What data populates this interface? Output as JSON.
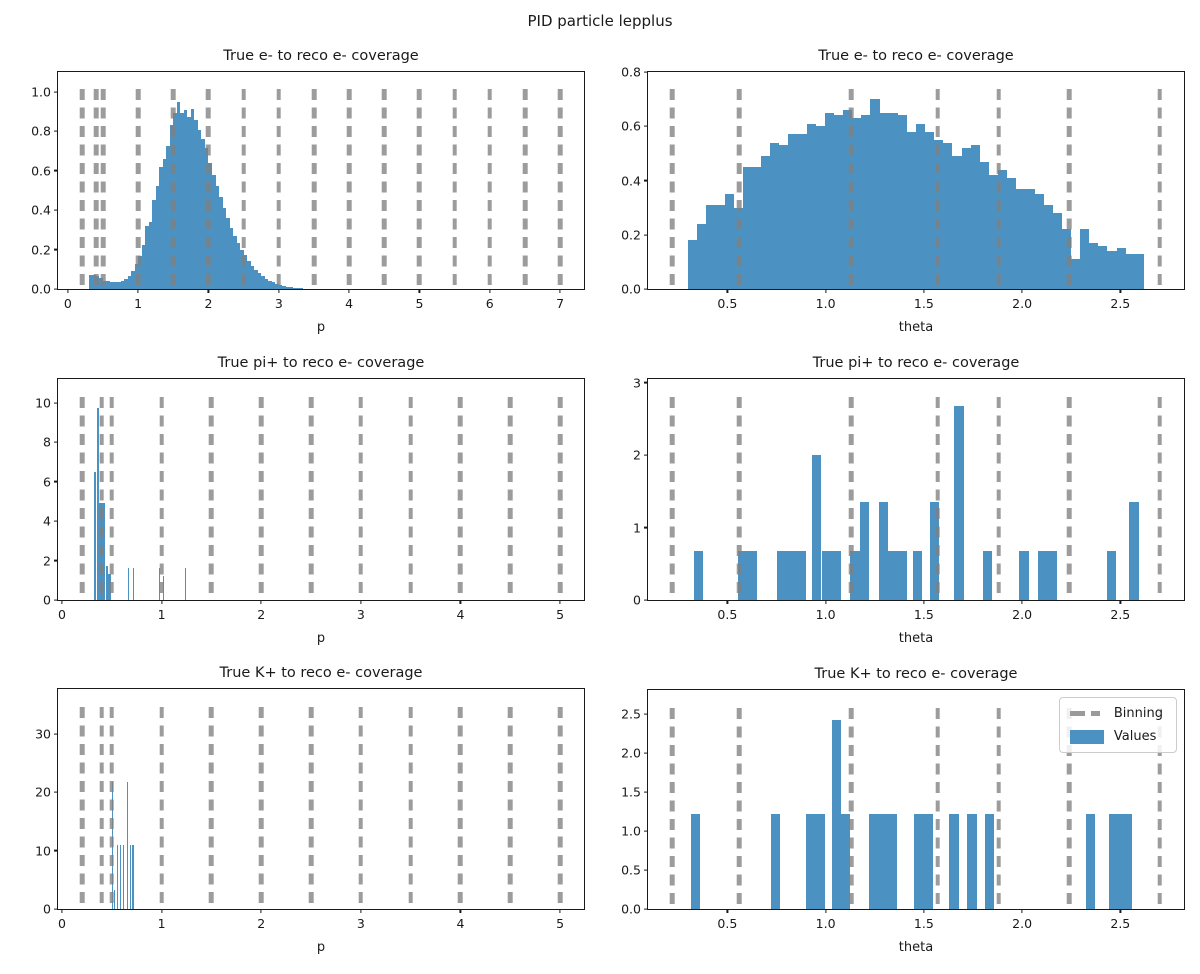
{
  "figure": {
    "suptitle": "PID particle lepplus"
  },
  "legend": {
    "binning_label": "Binning",
    "values_label": "Values"
  },
  "colors": {
    "bars": "#4b92c3",
    "binning": "#9a9a9a"
  },
  "chart_data": [
    {
      "type": "bar",
      "title": "True e- to reco e- coverage",
      "xlabel": "p",
      "xlim": [
        -0.14,
        7.34
      ],
      "ylim": [
        0,
        1.1
      ],
      "xtick_vals": [
        0,
        1,
        2,
        3,
        4,
        5,
        6,
        7
      ],
      "xtick_labels": [
        "0",
        "1",
        "2",
        "3",
        "4",
        "5",
        "6",
        "7"
      ],
      "ytick_vals": [
        0,
        0.2,
        0.4,
        0.6,
        0.8,
        1.0
      ],
      "ytick_labels": [
        "0.0",
        "0.2",
        "0.4",
        "0.6",
        "0.8",
        "1.0"
      ],
      "binning": [
        0.2,
        0.4,
        0.5,
        1.0,
        1.5,
        2.0,
        2.5,
        3.0,
        3.5,
        4.0,
        4.5,
        5.0,
        5.5,
        6.0,
        6.5,
        7.0
      ],
      "hist": {
        "x0": 0.3,
        "binw": 0.05,
        "heights": [
          0.07,
          0.072,
          0.068,
          0.055,
          0.043,
          0.04,
          0.038,
          0.036,
          0.038,
          0.042,
          0.05,
          0.065,
          0.09,
          0.125,
          0.165,
          0.225,
          0.32,
          0.34,
          0.45,
          0.52,
          0.62,
          0.66,
          0.725,
          0.83,
          0.89,
          0.95,
          0.89,
          0.905,
          0.87,
          0.91,
          0.855,
          0.805,
          0.76,
          0.715,
          0.64,
          0.58,
          0.52,
          0.465,
          0.41,
          0.36,
          0.31,
          0.27,
          0.235,
          0.2,
          0.17,
          0.14,
          0.115,
          0.095,
          0.08,
          0.065,
          0.052,
          0.042,
          0.034,
          0.027,
          0.021,
          0.016,
          0.012,
          0.009,
          0.007,
          0.005,
          0.004
        ]
      }
    },
    {
      "type": "bar",
      "title": "True e- to reco e- coverage",
      "xlabel": "theta",
      "xlim": [
        0.096,
        2.824
      ],
      "ylim": [
        0,
        0.8
      ],
      "xtick_vals": [
        0.5,
        1.0,
        1.5,
        2.0,
        2.5
      ],
      "xtick_labels": [
        "0.5",
        "1.0",
        "1.5",
        "2.0",
        "2.5"
      ],
      "ytick_vals": [
        0,
        0.2,
        0.4,
        0.6,
        0.8
      ],
      "ytick_labels": [
        "0.0",
        "0.2",
        "0.4",
        "0.6",
        "0.8"
      ],
      "binning": [
        0.22,
        0.56,
        1.13,
        1.57,
        1.88,
        2.24,
        2.7
      ],
      "hist": {
        "x0": 0.3,
        "binw": 0.0464,
        "heights": [
          0.18,
          0.24,
          0.31,
          0.31,
          0.35,
          0.3,
          0.45,
          0.45,
          0.49,
          0.54,
          0.53,
          0.57,
          0.57,
          0.61,
          0.6,
          0.65,
          0.64,
          0.66,
          0.63,
          0.64,
          0.7,
          0.65,
          0.65,
          0.64,
          0.58,
          0.61,
          0.58,
          0.55,
          0.54,
          0.49,
          0.52,
          0.53,
          0.47,
          0.42,
          0.44,
          0.41,
          0.37,
          0.37,
          0.35,
          0.31,
          0.28,
          0.22,
          0.11,
          0.22,
          0.17,
          0.16,
          0.14,
          0.15,
          0.13,
          0.13
        ]
      }
    },
    {
      "type": "bar",
      "title": "True pi+ to reco e- coverage",
      "xlabel": "p",
      "xlim": [
        -0.04,
        5.24
      ],
      "ylim": [
        0,
        11.2
      ],
      "xtick_vals": [
        0,
        1,
        2,
        3,
        4,
        5
      ],
      "xtick_labels": [
        "0",
        "1",
        "2",
        "3",
        "4",
        "5"
      ],
      "ytick_vals": [
        0,
        2,
        4,
        6,
        8,
        10
      ],
      "ytick_labels": [
        "0",
        "2",
        "4",
        "6",
        "8",
        "10"
      ],
      "binning": [
        0.2,
        0.4,
        0.5,
        1.0,
        1.5,
        2.0,
        2.5,
        3.0,
        3.5,
        4.0,
        4.5,
        5.0
      ],
      "bars": [
        [
          0.325,
          0.015,
          6.5
        ],
        [
          0.355,
          0.015,
          9.75
        ],
        [
          0.375,
          0.055,
          4.9
        ],
        [
          0.445,
          0.015,
          1.7
        ],
        [
          0.465,
          0.03,
          1.3
        ],
        [
          0.665,
          0.012,
          1.6
        ],
        [
          0.71,
          0.012,
          1.6
        ],
        [
          0.975,
          0.012,
          1.6
        ],
        [
          1.01,
          0.012,
          1.2
        ],
        [
          1.235,
          0.012,
          1.6
        ]
      ]
    },
    {
      "type": "bar",
      "title": "True pi+ to reco e- coverage",
      "xlabel": "theta",
      "xlim": [
        0.096,
        2.824
      ],
      "ylim": [
        0,
        3.05
      ],
      "xtick_vals": [
        0.5,
        1.0,
        1.5,
        2.0,
        2.5
      ],
      "xtick_labels": [
        "0.5",
        "1.0",
        "1.5",
        "2.0",
        "2.5"
      ],
      "ytick_vals": [
        0,
        1,
        2,
        3
      ],
      "ytick_labels": [
        "0",
        "1",
        "2",
        "3"
      ],
      "binning": [
        0.22,
        0.56,
        1.13,
        1.57,
        1.88,
        2.24,
        2.7
      ],
      "bars": [
        [
          0.33,
          0.048,
          0.67
        ],
        [
          0.555,
          0.048,
          0.67
        ],
        [
          0.605,
          0.048,
          0.67
        ],
        [
          0.755,
          0.145,
          0.67
        ],
        [
          0.93,
          0.048,
          2.0
        ],
        [
          0.98,
          0.096,
          0.67
        ],
        [
          1.125,
          0.048,
          0.67
        ],
        [
          1.175,
          0.048,
          1.35
        ],
        [
          1.27,
          0.048,
          1.35
        ],
        [
          1.32,
          0.096,
          0.67
        ],
        [
          1.445,
          0.048,
          0.67
        ],
        [
          1.53,
          0.048,
          1.35
        ],
        [
          1.655,
          0.048,
          2.68
        ],
        [
          1.8,
          0.048,
          0.67
        ],
        [
          1.985,
          0.048,
          0.67
        ],
        [
          2.08,
          0.096,
          0.67
        ],
        [
          2.43,
          0.048,
          0.67
        ],
        [
          2.545,
          0.048,
          1.35
        ]
      ]
    },
    {
      "type": "bar",
      "title": "True K+ to reco e- coverage",
      "xlabel": "p",
      "xlim": [
        -0.04,
        5.24
      ],
      "ylim": [
        0,
        37.7
      ],
      "xtick_vals": [
        0,
        1,
        2,
        3,
        4,
        5
      ],
      "xtick_labels": [
        "0",
        "1",
        "2",
        "3",
        "4",
        "5"
      ],
      "ytick_vals": [
        0,
        10,
        20,
        30
      ],
      "ytick_labels": [
        "0",
        "10",
        "20",
        "30"
      ],
      "binning": [
        0.2,
        0.4,
        0.5,
        1.0,
        1.5,
        2.0,
        2.5,
        3.0,
        3.5,
        4.0,
        4.5,
        5.0
      ],
      "bars": [
        [
          0.505,
          0.012,
          21.8
        ],
        [
          0.52,
          0.008,
          3.2
        ],
        [
          0.548,
          0.01,
          11
        ],
        [
          0.578,
          0.01,
          11
        ],
        [
          0.608,
          0.01,
          11
        ],
        [
          0.648,
          0.012,
          21.7
        ],
        [
          0.678,
          0.01,
          11
        ],
        [
          0.705,
          0.022,
          11
        ]
      ]
    },
    {
      "type": "bar",
      "title": "True K+ to reco e- coverage",
      "xlabel": "theta",
      "xlim": [
        0.096,
        2.824
      ],
      "ylim": [
        0,
        2.81
      ],
      "xtick_vals": [
        0.5,
        1.0,
        1.5,
        2.0,
        2.5
      ],
      "xtick_labels": [
        "0.5",
        "1.0",
        "1.5",
        "2.0",
        "2.5"
      ],
      "ytick_vals": [
        0,
        0.5,
        1.0,
        1.5,
        2.0,
        2.5
      ],
      "ytick_labels": [
        "0.0",
        "0.5",
        "1.0",
        "1.5",
        "2.0",
        "2.5"
      ],
      "binning": [
        0.22,
        0.56,
        1.13,
        1.57,
        1.88,
        2.24,
        2.7
      ],
      "bars": [
        [
          0.315,
          0.048,
          1.22
        ],
        [
          0.72,
          0.048,
          1.22
        ],
        [
          0.9,
          0.096,
          1.22
        ],
        [
          1.03,
          0.048,
          2.43
        ],
        [
          1.078,
          0.048,
          1.22
        ],
        [
          1.22,
          0.145,
          1.22
        ],
        [
          1.45,
          0.096,
          1.22
        ],
        [
          1.63,
          0.048,
          1.22
        ],
        [
          1.72,
          0.048,
          1.22
        ],
        [
          1.81,
          0.048,
          1.22
        ],
        [
          2.325,
          0.048,
          1.22
        ],
        [
          2.44,
          0.12,
          1.22
        ]
      ]
    }
  ]
}
